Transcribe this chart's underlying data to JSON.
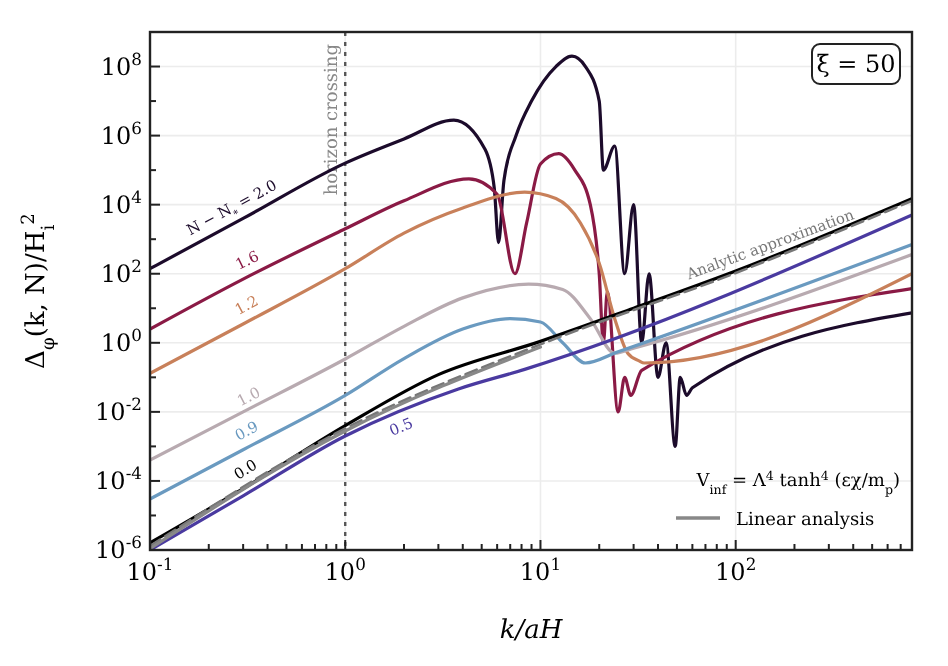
{
  "chart_data": {
    "type": "line",
    "xlabel": "k/aH",
    "ylabel": "Δ$_{φ}$(k, N)/H$_{i}$$^{2}$",
    "log": "xy",
    "grid": true,
    "legend": "bottom right",
    "line_style": "solid",
    "xlim": [
      0.1,
      800
    ],
    "ylim": [
      1e-06,
      1000000000.0
    ],
    "xticks": [
      {
        "value": 0.1,
        "label": "10$^{-1}$"
      },
      {
        "value": 0.2,
        "label": null
      },
      {
        "value": 0.3,
        "label": null
      },
      {
        "value": 0.4,
        "label": null
      },
      {
        "value": 0.5,
        "label": null
      },
      {
        "value": 0.6,
        "label": null
      },
      {
        "value": 0.7,
        "label": null
      },
      {
        "value": 0.8,
        "label": null
      },
      {
        "value": 0.9,
        "label": null
      },
      {
        "value": 1,
        "label": "10$^{0}$"
      },
      {
        "value": 2,
        "label": null
      },
      {
        "value": 3,
        "label": null
      },
      {
        "value": 4,
        "label": null
      },
      {
        "value": 5,
        "label": null
      },
      {
        "value": 6,
        "label": null
      },
      {
        "value": 7,
        "label": null
      },
      {
        "value": 8,
        "label": null
      },
      {
        "value": 9,
        "label": null
      },
      {
        "value": 10,
        "label": "10$^{1}$"
      },
      {
        "value": 20,
        "label": null
      },
      {
        "value": 30,
        "label": null
      },
      {
        "value": 40,
        "label": null
      },
      {
        "value": 50,
        "label": null
      },
      {
        "value": 60,
        "label": null
      },
      {
        "value": 70,
        "label": null
      },
      {
        "value": 80,
        "label": null
      },
      {
        "value": 90,
        "label": null
      },
      {
        "value": 100,
        "label": "10$^{2}$"
      },
      {
        "value": 200,
        "label": null
      },
      {
        "value": 300,
        "label": null
      },
      {
        "value": 400,
        "label": null
      },
      {
        "value": 500,
        "label": null
      },
      {
        "value": 600,
        "label": null
      },
      {
        "value": 700,
        "label": null
      },
      {
        "value": 800,
        "label": null
      }
    ],
    "yticks": [
      {
        "value": 1e-06,
        "label": "10$^{-6}$"
      },
      {
        "value": 1e-05,
        "label": null
      },
      {
        "value": 0.0001,
        "label": "10$^{-4}$"
      },
      {
        "value": 0.001,
        "label": null
      },
      {
        "value": 0.01,
        "label": "10$^{-2}$"
      },
      {
        "value": 0.1,
        "label": null
      },
      {
        "value": 1,
        "label": "10$^{0}$"
      },
      {
        "value": 10,
        "label": null
      },
      {
        "value": 100,
        "label": "10$^{2}$"
      },
      {
        "value": 1000,
        "label": null
      },
      {
        "value": 10000,
        "label": "10$^{4}$"
      },
      {
        "value": 100000,
        "label": null
      },
      {
        "value": 1000000,
        "label": "10$^{6}$"
      },
      {
        "value": 10000000,
        "label": null
      },
      {
        "value": 100000000,
        "label": "10$^{8}$"
      }
    ],
    "annotations": [
      "ξ = 50",
      "V$_{inf}$ = Λ$^{4}$ tanh$^{4}$ (εχ/m$_{p}$)"
    ],
    "ref_lines": [
      {
        "axis": "x",
        "value": 1,
        "label": "horizon crossing",
        "color": "#555555",
        "line_style": "dotted"
      }
    ],
    "series": [
      {
        "name": "N − N$_{*}$ = 2.0",
        "color": "#1c0b2b",
        "x": [
          0.1,
          0.3,
          1,
          2,
          3.6,
          5.2,
          5.8,
          6.1,
          6.5,
          7.5,
          9,
          12,
          14.5,
          17,
          20,
          21,
          24,
          27,
          30,
          33,
          36,
          40,
          44,
          49,
          52,
          56,
          60,
          800
        ],
        "values": [
          140,
          4000,
          160000,
          800000,
          2800000,
          400000,
          30000,
          800,
          50000,
          1000000,
          10000000,
          100000000,
          200000000,
          100000000,
          10000000,
          100000,
          500000,
          100,
          10000,
          1,
          100,
          0.1,
          1,
          0.001,
          0.1,
          0.03,
          0.05,
          7.4
        ]
      },
      {
        "name": "1.6",
        "color": "#8a1a45",
        "x": [
          0.1,
          0.3,
          1,
          2,
          4.3,
          6,
          7.4,
          8.5,
          10,
          12.4,
          15,
          18,
          20,
          21,
          22,
          25,
          27,
          29,
          33,
          800
        ],
        "values": [
          2.5,
          70,
          2000,
          13000,
          56000,
          20000,
          100,
          3000,
          150000,
          300000,
          100000,
          10000,
          100,
          1,
          30,
          0.01,
          0.1,
          0.03,
          0.16,
          37
        ]
      },
      {
        "name": "1.2",
        "color": "#c8805a",
        "x": [
          0.1,
          0.3,
          1,
          2,
          4,
          8.3,
          12,
          16,
          20,
          24,
          28,
          32,
          34,
          800
        ],
        "values": [
          0.13,
          3.5,
          140,
          1500,
          8000,
          23000,
          15000,
          3000,
          200,
          5,
          0.5,
          0.3,
          0.26,
          100
        ]
      },
      {
        "name": "1.0",
        "color": "#b8aab0",
        "x": [
          0.1,
          0.3,
          1,
          2,
          4,
          8.7,
          13,
          18,
          24,
          30,
          800
        ],
        "values": [
          0.0004,
          0.01,
          0.34,
          3,
          20,
          50,
          35,
          5,
          0.5,
          0.7,
          360
        ]
      },
      {
        "name": "0.9",
        "color": "#6a9ac0",
        "x": [
          0.1,
          0.3,
          1,
          2,
          4,
          7,
          10,
          13,
          17,
          25,
          800
        ],
        "values": [
          3e-05,
          0.0008,
          0.03,
          0.35,
          2.5,
          5,
          4,
          1,
          0.26,
          0.55,
          700
        ]
      },
      {
        "name": "0.5",
        "color": "#4a3aa0",
        "x": [
          0.1,
          0.3,
          1,
          3.8,
          8.3,
          800
        ],
        "values": [
          1e-06,
          3.7e-05,
          0.002,
          0.046,
          0.17,
          5000
        ]
      },
      {
        "name": "0.0",
        "color": "#000000",
        "x": [
          0.1,
          0.3,
          1,
          3,
          10,
          30,
          100,
          800
        ],
        "values": [
          1.6e-06,
          6e-05,
          0.004,
          0.12,
          1.1,
          10,
          120,
          15000
        ]
      },
      {
        "name": "Analytic approximation",
        "color": "#777777",
        "line_style": "dashed",
        "x": [
          0.1,
          1,
          10,
          100,
          800
        ],
        "values": [
          1.3e-06,
          0.0033,
          0.9,
          105,
          13000
        ]
      },
      {
        "name": "Linear analysis",
        "color": "#888888",
        "x": [
          0.1,
          1,
          10
        ],
        "values": [
          1.1e-06,
          0.0028,
          0.75
        ]
      }
    ]
  }
}
